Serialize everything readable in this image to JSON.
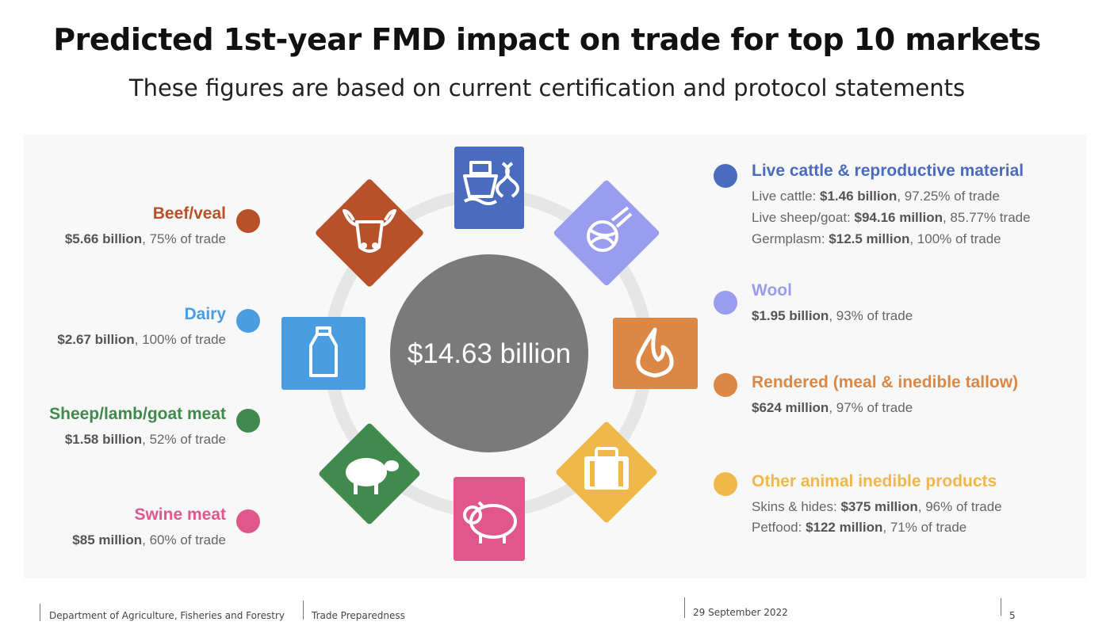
{
  "title": "Predicted 1st-year FMD impact on trade for top 10 markets",
  "subtitle": "These figures are based on current certification and protocol statements",
  "center_total": "$14.63 billion",
  "colors": {
    "beef": "#b8512a",
    "dairy": "#4a9de0",
    "sheep": "#3f8a4c",
    "swine": "#e0578c",
    "live": "#4b6bbf",
    "wool": "#9a9cf0",
    "rendered": "#db8847",
    "other": "#f0b84a",
    "hub": "#7a7a7a",
    "ring": "#e6e6e6"
  },
  "left_items": [
    {
      "id": "beef",
      "title": "Beef/veal",
      "icon": "cow-icon",
      "lines": [
        {
          "bold": "$5.66 billion",
          "rest": ", 75% of trade"
        }
      ]
    },
    {
      "id": "dairy",
      "title": "Dairy",
      "icon": "milk-bottle-icon",
      "lines": [
        {
          "bold": "$2.67 billion",
          "rest": ", 100% of trade"
        }
      ]
    },
    {
      "id": "sheep",
      "title": "Sheep/lamb/goat meat",
      "icon": "sheep-icon",
      "lines": [
        {
          "bold": "$1.58 billion",
          "rest": ", 52% of trade"
        }
      ]
    },
    {
      "id": "swine",
      "title": "Swine meat",
      "icon": "pig-icon",
      "lines": [
        {
          "bold": "$85 million",
          "rest": ", 60% of trade"
        }
      ]
    }
  ],
  "right_items": [
    {
      "id": "live",
      "title": "Live cattle & reproductive material",
      "icon": "ship-dna-icon",
      "lines": [
        {
          "pre": "Live cattle: ",
          "bold": "$1.46 billion",
          "rest": ", 97.25% of trade"
        },
        {
          "pre": "Live sheep/goat: ",
          "bold": "$94.16 million",
          "rest": ", 85.77% trade"
        },
        {
          "pre": "Germplasm: ",
          "bold": "$12.5 million",
          "rest": ", 100% of trade"
        }
      ]
    },
    {
      "id": "wool",
      "title": "Wool",
      "icon": "yarn-ball-icon",
      "lines": [
        {
          "bold": "$1.95 billion",
          "rest": ", 93% of trade"
        }
      ]
    },
    {
      "id": "rendered",
      "title": "Rendered (meal & inedible tallow)",
      "icon": "flame-icon",
      "lines": [
        {
          "bold": "$624 million",
          "rest": ", 97% of trade"
        }
      ]
    },
    {
      "id": "other",
      "title": "Other animal inedible products",
      "icon": "bag-icon",
      "lines": [
        {
          "pre": "Skins & hides: ",
          "bold": "$375 million",
          "rest": ", 96% of trade"
        },
        {
          "pre": "Petfood: ",
          "bold": "$122 million",
          "rest": ", 71% of trade"
        }
      ]
    }
  ],
  "footer": {
    "department": "Department of Agriculture, Fisheries and Forestry",
    "section": "Trade Preparedness",
    "date": "29 September 2022",
    "page": "5"
  }
}
